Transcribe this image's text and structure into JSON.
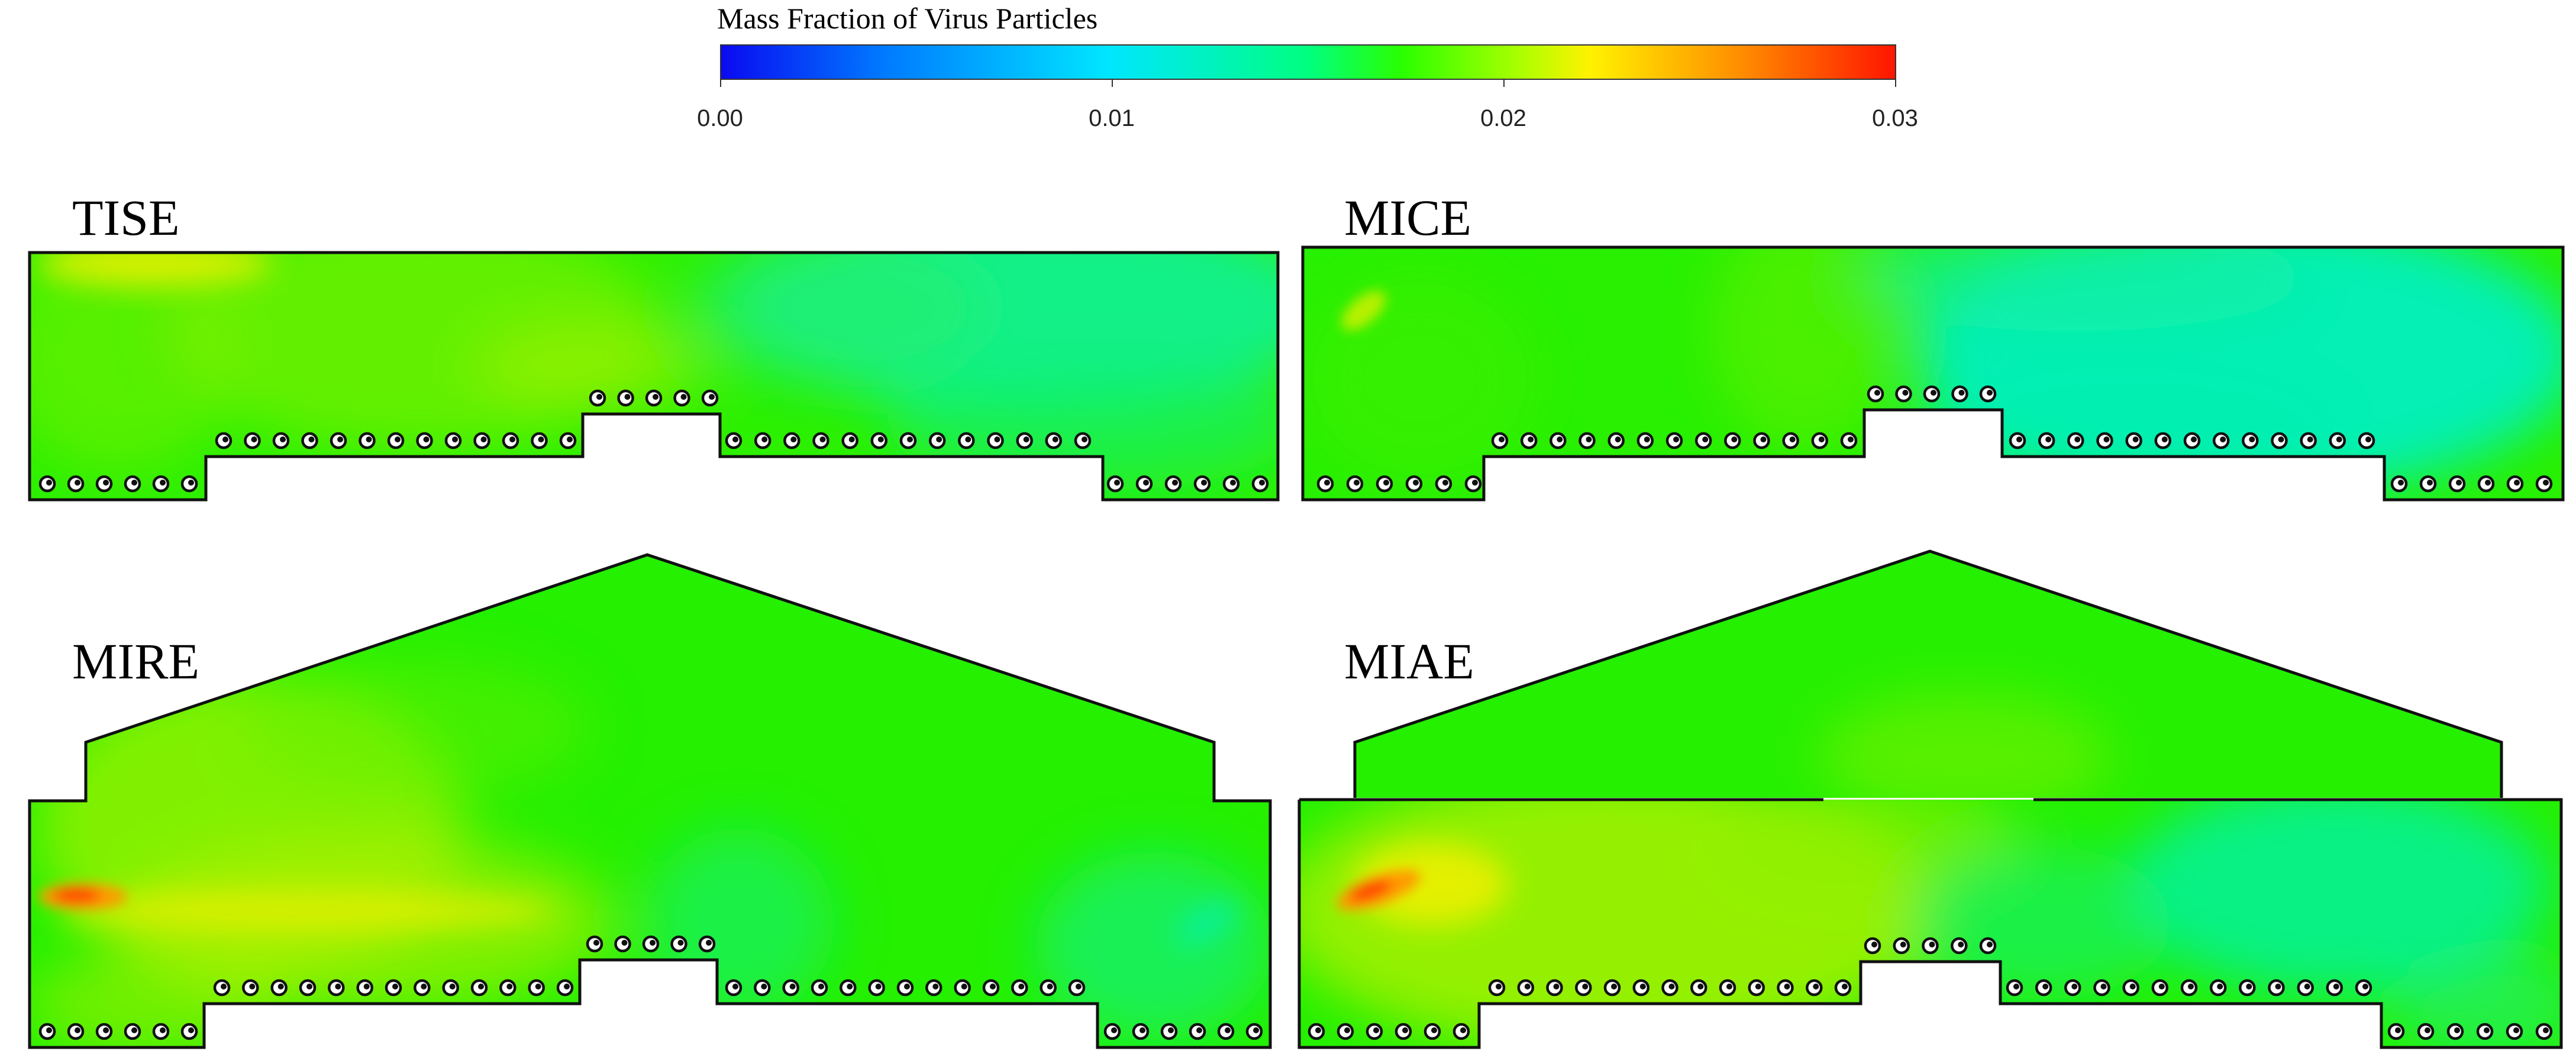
{
  "colorbar": {
    "title": "Mass Fraction of Virus Particles",
    "ticks": [
      "0.00",
      "0.01",
      "0.02",
      "0.03"
    ],
    "min": 0.0,
    "max": 0.03,
    "colormap": [
      "#0a0af0",
      "#007bff",
      "#00e6ff",
      "#00ff80",
      "#2aff00",
      "#aaff00",
      "#fff200",
      "#ff8c00",
      "#ff1500"
    ]
  },
  "panels": [
    {
      "label": "TISE",
      "seat_rows": [
        6,
        13,
        5,
        13,
        6
      ]
    },
    {
      "label": "MICE",
      "seat_rows": [
        6,
        13,
        5,
        13,
        6
      ]
    },
    {
      "label": "MIRE",
      "seat_rows": [
        6,
        13,
        5,
        13,
        6
      ]
    },
    {
      "label": "MIAE",
      "seat_rows": [
        6,
        13,
        5,
        13,
        6
      ]
    }
  ],
  "colors": {
    "outline": "#111111",
    "base_green": "#22f000",
    "cyan_region": "#00f0c0",
    "yellow_region": "#c8f000",
    "hotspot": "#ff3c00"
  }
}
